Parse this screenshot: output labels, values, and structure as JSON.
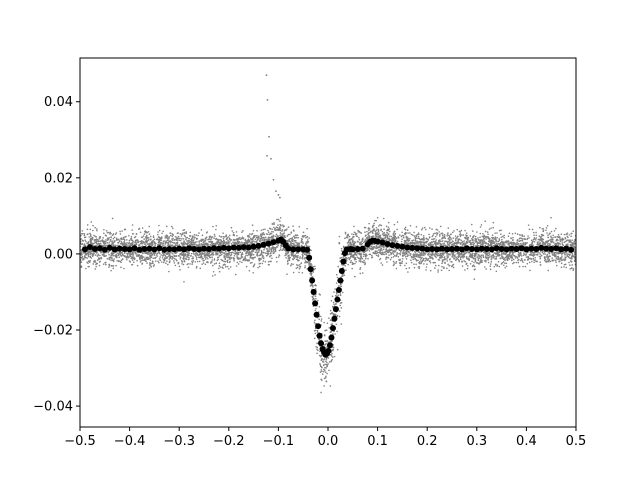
{
  "chart_data": {
    "type": "scatter",
    "title": "",
    "xlabel": "",
    "ylabel": "",
    "xlim": [
      -0.5,
      0.5
    ],
    "ylim": [
      -0.0455,
      0.0515
    ],
    "xticks": [
      -0.5,
      -0.4,
      -0.3,
      -0.2,
      -0.1,
      0.0,
      0.1,
      0.2,
      0.3,
      0.4,
      0.5
    ],
    "xtick_labels": [
      "−0.5",
      "−0.4",
      "−0.3",
      "−0.2",
      "−0.1",
      "0.0",
      "0.1",
      "0.2",
      "0.3",
      "0.4",
      "0.5"
    ],
    "yticks": [
      -0.04,
      -0.02,
      0.0,
      0.02,
      0.04
    ],
    "ytick_labels": [
      "−0.04",
      "−0.02",
      "0.00",
      "0.02",
      "0.04"
    ],
    "grid": false,
    "legend": "none",
    "series": [
      {
        "kind": "raw",
        "color": "#808080",
        "marker_size": "small",
        "description_points": "dense noisy scatter around baseline",
        "baseline": 0.001,
        "noise_sigma": 0.0022,
        "outliers": [
          [
            -0.124,
            0.047
          ],
          [
            -0.122,
            0.0405
          ],
          [
            -0.119,
            0.0308
          ],
          [
            -0.123,
            0.0258
          ],
          [
            -0.115,
            0.025
          ],
          [
            -0.11,
            0.0195
          ],
          [
            -0.105,
            0.0165
          ],
          [
            -0.1,
            0.0155
          ],
          [
            -0.097,
            0.0148
          ]
        ]
      },
      {
        "kind": "binned",
        "color": "#000000",
        "marker_size": "large",
        "points": [
          [
            -0.49,
            0.0012
          ],
          [
            -0.48,
            0.0018
          ],
          [
            -0.47,
            0.0013
          ],
          [
            -0.46,
            0.0015
          ],
          [
            -0.45,
            0.0011
          ],
          [
            -0.44,
            0.0016
          ],
          [
            -0.43,
            0.0012
          ],
          [
            -0.42,
            0.0014
          ],
          [
            -0.41,
            0.0013
          ],
          [
            -0.4,
            0.0012
          ],
          [
            -0.39,
            0.0015
          ],
          [
            -0.38,
            0.0011
          ],
          [
            -0.37,
            0.0013
          ],
          [
            -0.36,
            0.0014
          ],
          [
            -0.35,
            0.0012
          ],
          [
            -0.34,
            0.0015
          ],
          [
            -0.33,
            0.0011
          ],
          [
            -0.32,
            0.0013
          ],
          [
            -0.31,
            0.0012
          ],
          [
            -0.3,
            0.0014
          ],
          [
            -0.29,
            0.0012
          ],
          [
            -0.28,
            0.0015
          ],
          [
            -0.27,
            0.0013
          ],
          [
            -0.26,
            0.0012
          ],
          [
            -0.25,
            0.0014
          ],
          [
            -0.24,
            0.0013
          ],
          [
            -0.23,
            0.0015
          ],
          [
            -0.22,
            0.0014
          ],
          [
            -0.21,
            0.0016
          ],
          [
            -0.2,
            0.0015
          ],
          [
            -0.19,
            0.0017
          ],
          [
            -0.18,
            0.0016
          ],
          [
            -0.17,
            0.0018
          ],
          [
            -0.16,
            0.0017
          ],
          [
            -0.15,
            0.0019
          ],
          [
            -0.14,
            0.0021
          ],
          [
            -0.13,
            0.0024
          ],
          [
            -0.12,
            0.0027
          ],
          [
            -0.11,
            0.0031
          ],
          [
            -0.1,
            0.0035
          ],
          [
            -0.095,
            0.0038
          ],
          [
            -0.09,
            0.0032
          ],
          [
            -0.085,
            0.0022
          ],
          [
            -0.08,
            0.0014
          ],
          [
            -0.07,
            0.0012
          ],
          [
            -0.06,
            0.0012
          ],
          [
            -0.05,
            0.0012
          ],
          [
            -0.042,
            0.0011
          ],
          [
            -0.038,
            -0.001
          ],
          [
            -0.035,
            -0.004
          ],
          [
            -0.032,
            -0.007
          ],
          [
            -0.029,
            -0.01
          ],
          [
            -0.026,
            -0.013
          ],
          [
            -0.023,
            -0.016
          ],
          [
            -0.02,
            -0.019
          ],
          [
            -0.017,
            -0.0215
          ],
          [
            -0.014,
            -0.0235
          ],
          [
            -0.011,
            -0.025
          ],
          [
            -0.008,
            -0.0258
          ],
          [
            -0.005,
            -0.0265
          ],
          [
            -0.002,
            -0.0262
          ],
          [
            0.001,
            -0.0255
          ],
          [
            0.004,
            -0.024
          ],
          [
            0.007,
            -0.022
          ],
          [
            0.01,
            -0.0195
          ],
          [
            0.013,
            -0.017
          ],
          [
            0.016,
            -0.0145
          ],
          [
            0.019,
            -0.012
          ],
          [
            0.022,
            -0.0095
          ],
          [
            0.025,
            -0.007
          ],
          [
            0.028,
            -0.0045
          ],
          [
            0.031,
            -0.002
          ],
          [
            0.034,
            0.0002
          ],
          [
            0.038,
            0.0012
          ],
          [
            0.045,
            0.0013
          ],
          [
            0.05,
            0.0012
          ],
          [
            0.06,
            0.0013
          ],
          [
            0.07,
            0.0014
          ],
          [
            0.08,
            0.0025
          ],
          [
            0.085,
            0.0032
          ],
          [
            0.09,
            0.0035
          ],
          [
            0.095,
            0.0034
          ],
          [
            0.1,
            0.0033
          ],
          [
            0.11,
            0.003
          ],
          [
            0.12,
            0.0026
          ],
          [
            0.13,
            0.0023
          ],
          [
            0.14,
            0.0021
          ],
          [
            0.15,
            0.0019
          ],
          [
            0.16,
            0.0017
          ],
          [
            0.17,
            0.0016
          ],
          [
            0.18,
            0.0015
          ],
          [
            0.19,
            0.0014
          ],
          [
            0.2,
            0.0012
          ],
          [
            0.21,
            0.0013
          ],
          [
            0.22,
            0.0012
          ],
          [
            0.23,
            0.0014
          ],
          [
            0.24,
            0.0012
          ],
          [
            0.25,
            0.0013
          ],
          [
            0.26,
            0.0014
          ],
          [
            0.27,
            0.0012
          ],
          [
            0.28,
            0.0015
          ],
          [
            0.29,
            0.0013
          ],
          [
            0.3,
            0.0012
          ],
          [
            0.31,
            0.0014
          ],
          [
            0.32,
            0.0013
          ],
          [
            0.33,
            0.0012
          ],
          [
            0.34,
            0.0015
          ],
          [
            0.35,
            0.0013
          ],
          [
            0.36,
            0.0012
          ],
          [
            0.37,
            0.0014
          ],
          [
            0.38,
            0.0013
          ],
          [
            0.39,
            0.0015
          ],
          [
            0.4,
            0.0012
          ],
          [
            0.41,
            0.0014
          ],
          [
            0.42,
            0.0013
          ],
          [
            0.43,
            0.0016
          ],
          [
            0.44,
            0.0014
          ],
          [
            0.45,
            0.0013
          ],
          [
            0.46,
            0.0015
          ],
          [
            0.47,
            0.0012
          ],
          [
            0.48,
            0.0014
          ],
          [
            0.49,
            0.0011
          ]
        ]
      }
    ]
  }
}
